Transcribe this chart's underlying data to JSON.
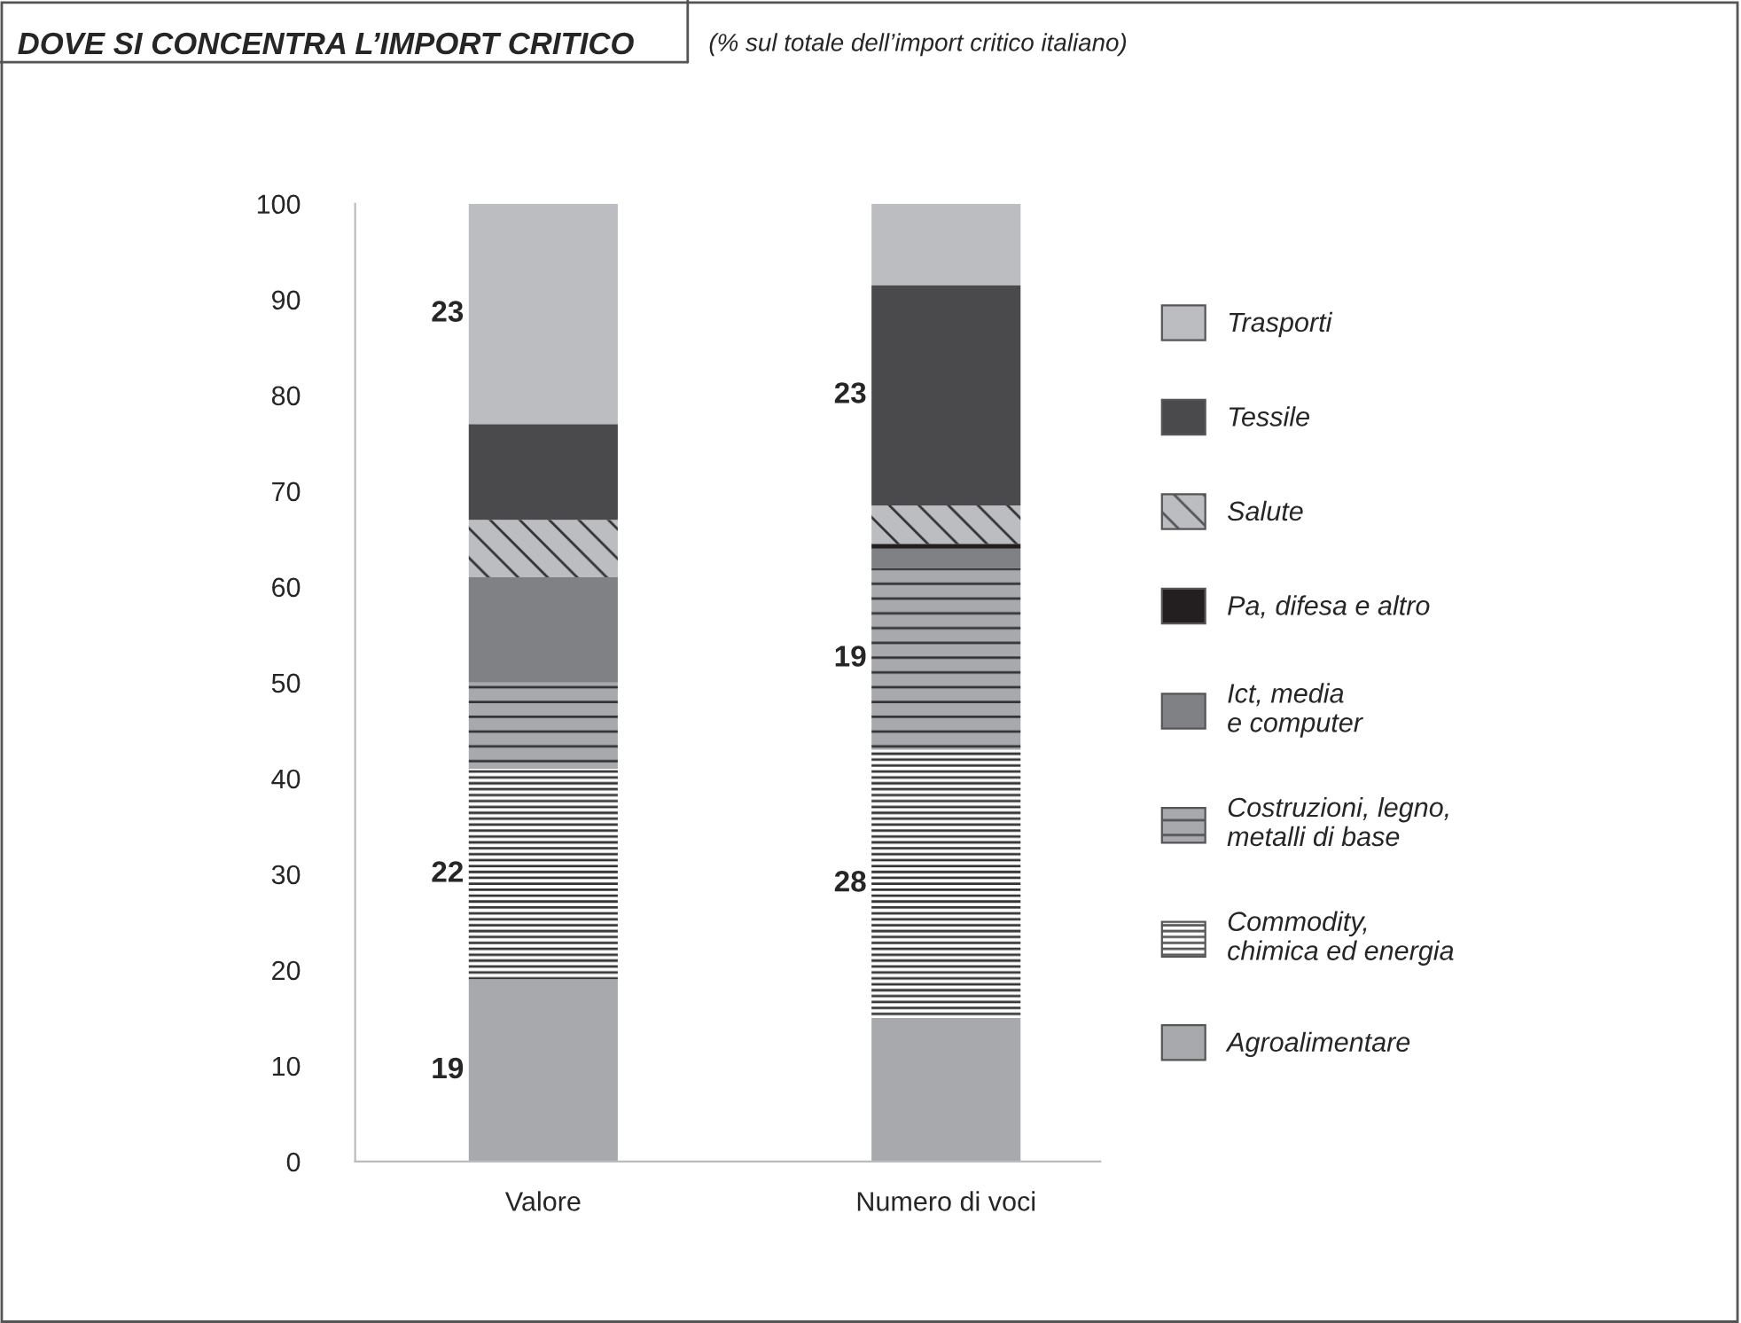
{
  "chart_data": {
    "type": "bar",
    "title": "DOVE SI CONCENTRA L’IMPORT CRITICO",
    "subtitle": "(% sul totale dell’import critico italiano)",
    "categories": [
      "Valore",
      "Numero di voci"
    ],
    "stacked": true,
    "legend": "right",
    "grid": false,
    "ylim": [
      0,
      100
    ],
    "yticks": [
      0,
      10,
      20,
      30,
      40,
      50,
      60,
      70,
      80,
      90,
      100
    ],
    "series": [
      {
        "name": "Agroalimentare",
        "color": "#a7a9ac",
        "values": [
          19,
          15
        ],
        "value_labels": [
          "19",
          null
        ]
      },
      {
        "name": "Commodity,\nchimica ed energia",
        "color": "#ffffff",
        "values": [
          22,
          28
        ],
        "value_labels": [
          "22",
          "28"
        ]
      },
      {
        "name": "Costruzioni, legno,\nmetalli di base",
        "color": "#a7a9ac",
        "values": [
          9,
          19
        ],
        "value_labels": [
          null,
          "19"
        ]
      },
      {
        "name": "Ict, media\ne computer",
        "color": "#808184",
        "values": [
          11,
          2
        ],
        "value_labels": [
          null,
          null
        ]
      },
      {
        "name": "Pa, difesa e altro",
        "color": "#231f20",
        "values": [
          0,
          0.5
        ],
        "value_labels": [
          null,
          null
        ]
      },
      {
        "name": "Salute",
        "color": "#bcbdc0",
        "values": [
          6,
          4
        ],
        "value_labels": [
          null,
          null
        ]
      },
      {
        "name": "Tessile",
        "color": "#4a4a4c",
        "values": [
          10,
          23
        ],
        "value_labels": [
          null,
          "23"
        ]
      },
      {
        "name": "Trasporti",
        "color": "#bcbdc0",
        "values": [
          23,
          8.5
        ],
        "value_labels": [
          "23",
          null
        ]
      }
    ]
  }
}
